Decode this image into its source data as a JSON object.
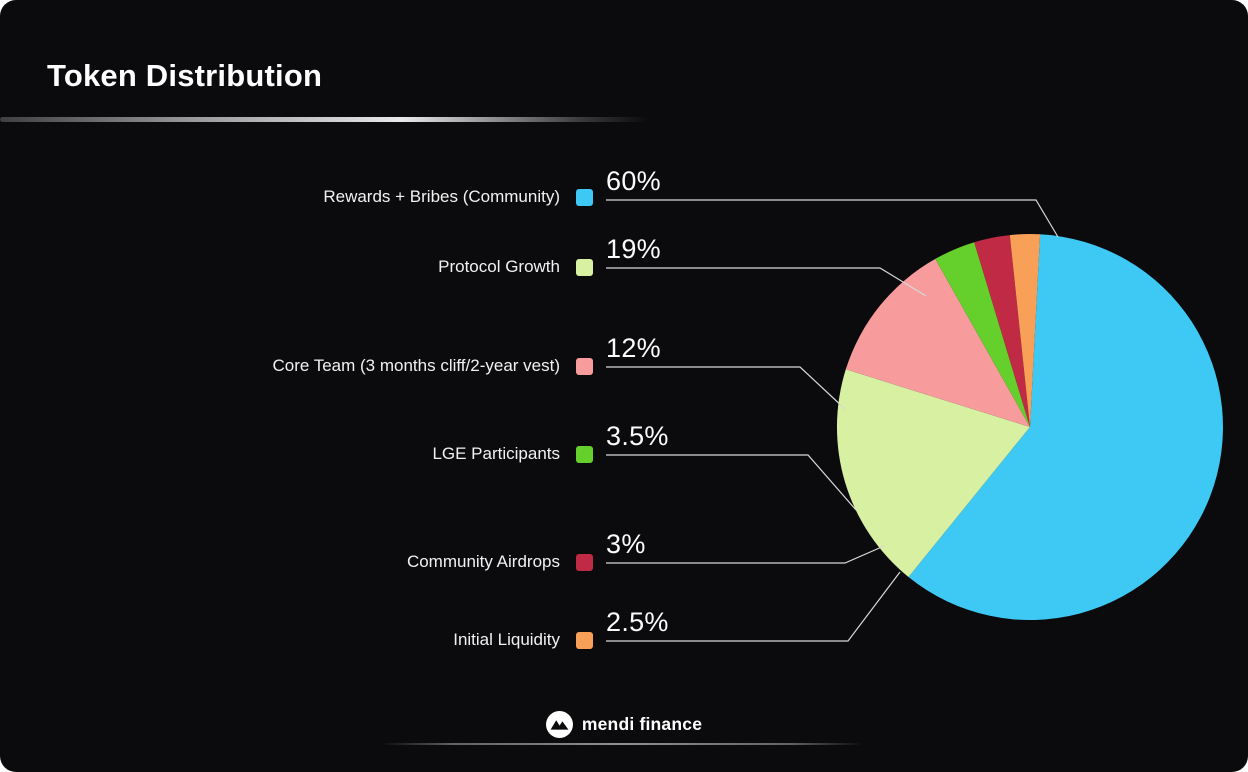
{
  "page": {
    "title": "Token Distribution",
    "footer_brand": "mendi finance"
  },
  "chart_data": {
    "type": "pie",
    "title": "Token Distribution",
    "start_angle_deg": 87,
    "direction": "clockwise",
    "total": 100,
    "legend_position": "left",
    "slices": [
      {
        "label": "Rewards + Bribes (Community)",
        "value": 60,
        "display": "60%",
        "color": "#3EC8F4"
      },
      {
        "label": "Protocol Growth",
        "value": 19,
        "display": "19%",
        "color": "#D7F0A2"
      },
      {
        "label": "Core Team (3 months cliff/2-year vest)",
        "value": 12,
        "display": "12%",
        "color": "#F89B9C"
      },
      {
        "label": "LGE Participants",
        "value": 3.5,
        "display": "3.5%",
        "color": "#65CF2B"
      },
      {
        "label": "Community Airdrops",
        "value": 3,
        "display": "3%",
        "color": "#C02A44"
      },
      {
        "label": "Initial Liquidity",
        "value": 2.5,
        "display": "2.5%",
        "color": "#F8A057"
      }
    ]
  }
}
